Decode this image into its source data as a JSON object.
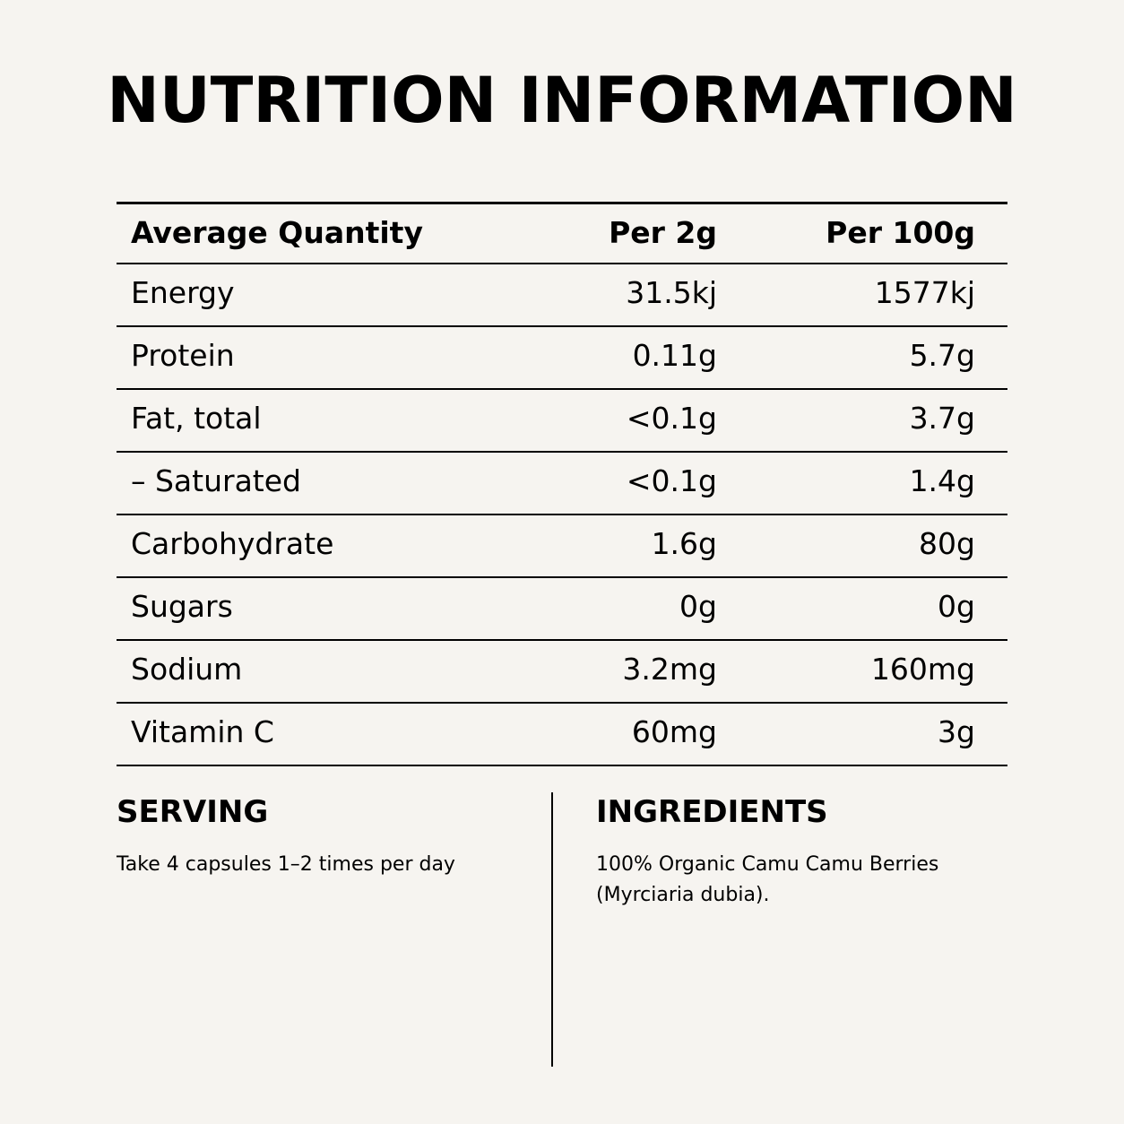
{
  "title": "NUTRITION INFORMATION",
  "table": {
    "header": [
      "Average Quantity",
      "Per 2g",
      "Per 100g"
    ],
    "rows": [
      [
        "Energy",
        "31.5kj",
        "1577kj"
      ],
      [
        "Protein",
        "0.11g",
        "5.7g"
      ],
      [
        "Fat, total",
        "<0.1g",
        "3.7g"
      ],
      [
        "– Saturated",
        "<0.1g",
        "1.4g"
      ],
      [
        "Carbohydrate",
        "1.6g",
        "80g"
      ],
      [
        "Sugars",
        "0g",
        "0g"
      ],
      [
        "Sodium",
        "3.2mg",
        "160mg"
      ],
      [
        "Vitamin C",
        "60mg",
        "3g"
      ]
    ]
  },
  "serving": {
    "heading": "SERVING",
    "text": "Take 4 capsules 1–2 times per day"
  },
  "ingredients": {
    "heading": "INGREDIENTS",
    "lines": [
      "100% Organic Camu Camu Berries",
      "(Myrciaria dubia)."
    ]
  }
}
